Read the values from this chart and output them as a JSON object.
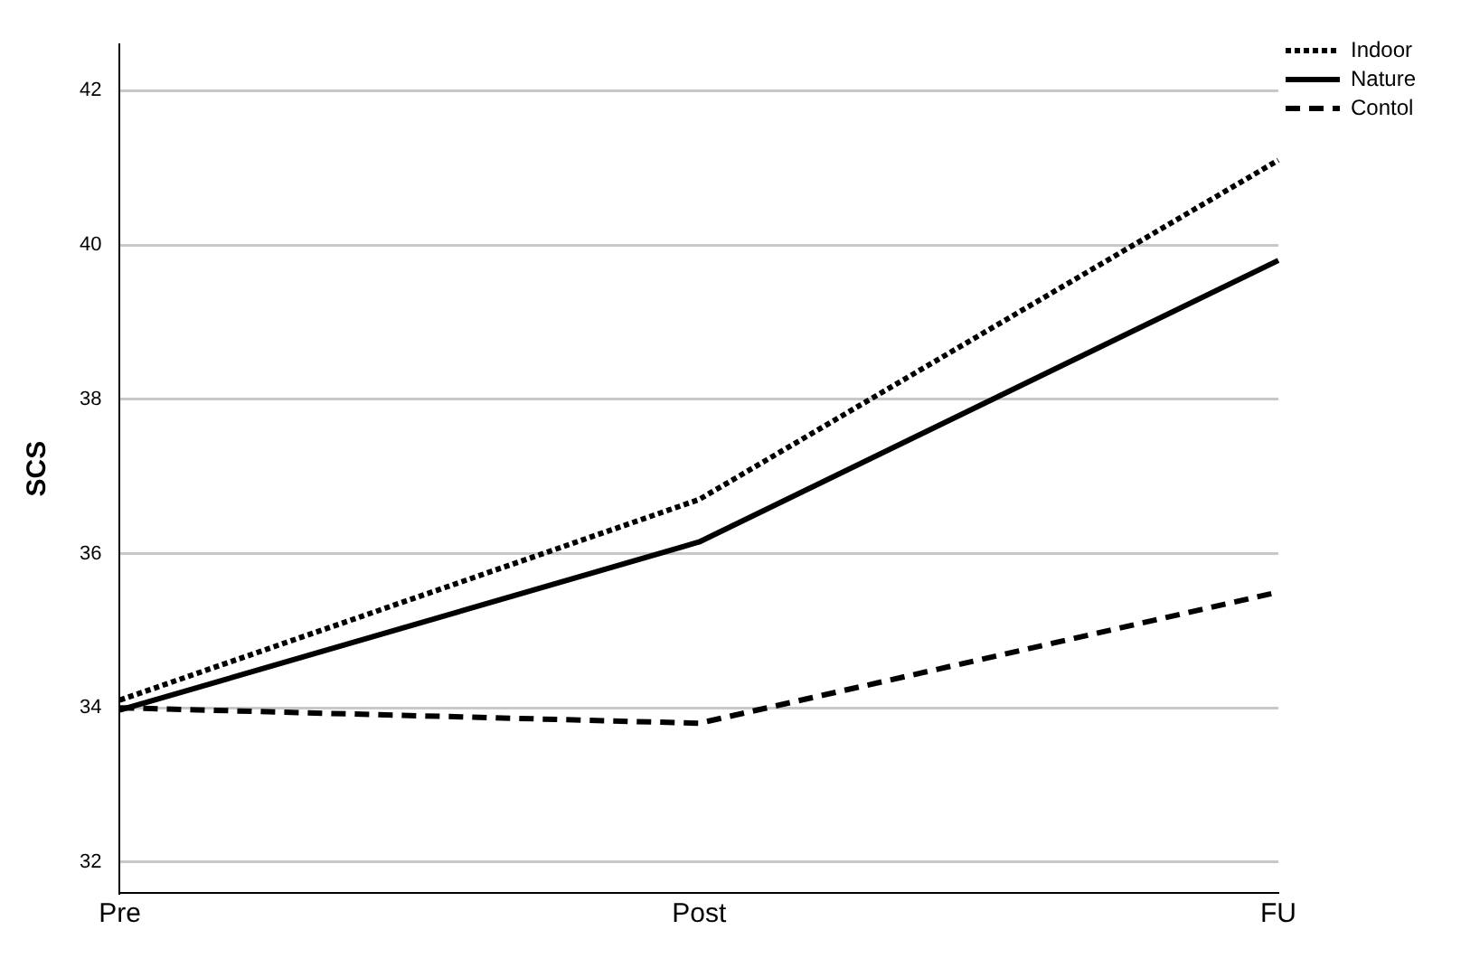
{
  "chart_data": {
    "type": "line",
    "ylabel": "SCS",
    "categories": [
      "Pre",
      "Post",
      "FU"
    ],
    "series": [
      {
        "name": "Indoor",
        "color": "#000000",
        "line_style": "dotted",
        "values": [
          34.1,
          36.7,
          41.1
        ]
      },
      {
        "name": "Nature",
        "color": "#000000",
        "line_style": "solid",
        "values": [
          33.97,
          36.15,
          39.8
        ]
      },
      {
        "name": "Contol",
        "color": "#000000",
        "line_style": "dashed",
        "values": [
          34.0,
          33.8,
          35.5
        ]
      }
    ],
    "ylim": [
      31.6,
      42.6
    ],
    "yticks": [
      32,
      34,
      36,
      38,
      40,
      42
    ],
    "grid": "y",
    "legend": "top right",
    "marker": "none"
  }
}
